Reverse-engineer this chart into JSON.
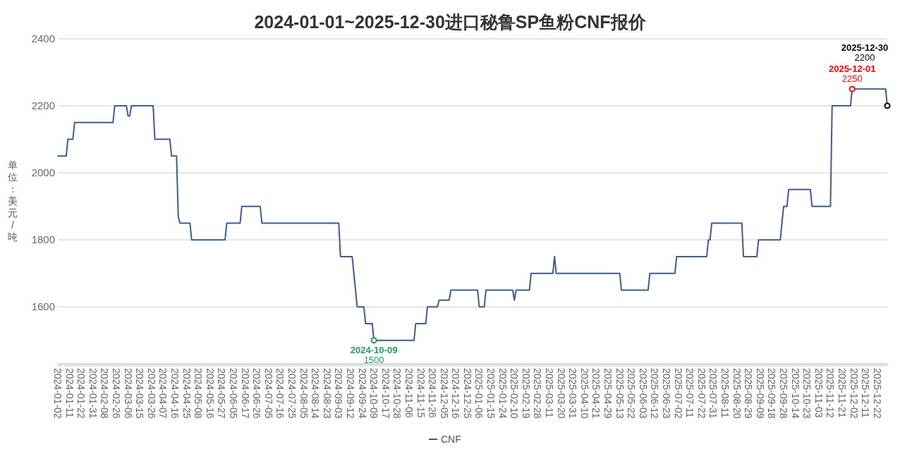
{
  "chart_data": {
    "type": "line",
    "title": "2024-01-01~2025-12-30进口秘鲁SP鱼粉CNF报价",
    "ylabel": "单位：美元/吨",
    "categories": [
      "2024-01-02",
      null,
      null,
      null,
      null,
      null,
      null,
      "2024-01-11",
      null,
      null,
      null,
      null,
      null,
      null,
      "2024-01-22",
      null,
      null,
      null,
      null,
      null,
      null,
      "2024-01-31",
      null,
      null,
      null,
      null,
      null,
      null,
      "2024-02-08",
      null,
      null,
      null,
      null,
      null,
      null,
      "2024-02-26",
      null,
      null,
      null,
      null,
      null,
      null,
      "2024-03-06",
      null,
      null,
      null,
      null,
      null,
      null,
      "2024-03-15",
      null,
      null,
      null,
      null,
      null,
      null,
      "2024-03-26",
      null,
      null,
      null,
      null,
      null,
      null,
      "2024-04-07",
      null,
      null,
      null,
      null,
      null,
      null,
      "2024-04-16",
      null,
      null,
      null,
      null,
      null,
      null,
      "2024-04-25",
      null,
      null,
      null,
      null,
      null,
      null,
      "2024-05-08",
      null,
      null,
      null,
      null,
      null,
      null,
      "2024-05-16",
      null,
      null,
      null,
      null,
      null,
      null,
      "2024-05-27",
      null,
      null,
      null,
      null,
      null,
      null,
      "2024-06-05",
      null,
      null,
      null,
      null,
      null,
      null,
      "2024-06-17",
      null,
      null,
      null,
      null,
      null,
      null,
      "2024-06-26",
      null,
      null,
      null,
      null,
      null,
      null,
      "2024-07-05",
      null,
      null,
      null,
      null,
      null,
      null,
      "2024-07-16",
      null,
      null,
      null,
      null,
      null,
      null,
      "2024-07-25",
      null,
      null,
      null,
      null,
      null,
      null,
      "2024-08-05",
      null,
      null,
      null,
      null,
      null,
      null,
      "2024-08-14",
      null,
      null,
      null,
      null,
      null,
      null,
      "2024-08-23",
      null,
      null,
      null,
      null,
      null,
      null,
      "2024-09-03",
      null,
      null,
      null,
      null,
      null,
      null,
      "2024-09-12",
      null,
      null,
      null,
      null,
      null,
      null,
      "2024-09-24",
      null,
      null,
      null,
      null,
      null,
      null,
      "2024-10-09",
      null,
      null,
      null,
      null,
      null,
      null,
      "2024-10-17",
      null,
      null,
      null,
      null,
      null,
      null,
      "2024-10-28",
      null,
      null,
      null,
      null,
      null,
      null,
      "2024-11-06",
      null,
      null,
      null,
      null,
      null,
      null,
      "2024-11-15",
      null,
      null,
      null,
      null,
      null,
      null,
      "2024-11-26",
      null,
      null,
      null,
      null,
      null,
      null,
      "2024-12-05",
      null,
      null,
      null,
      null,
      null,
      null,
      "2024-12-16",
      null,
      null,
      null,
      null,
      null,
      null,
      "2024-12-25",
      null,
      null,
      null,
      null,
      null,
      null,
      "2025-01-06",
      null,
      null,
      null,
      null,
      null,
      null,
      "2025-01-15",
      null,
      null,
      null,
      null,
      null,
      null,
      "2025-01-24",
      null,
      null,
      null,
      null,
      null,
      null,
      "2025-02-10",
      null,
      null,
      null,
      null,
      null,
      null,
      "2025-02-19",
      null,
      null,
      null,
      null,
      null,
      null,
      "2025-02-28",
      null,
      null,
      null,
      null,
      null,
      null,
      "2025-03-11",
      null,
      null,
      null,
      null,
      null,
      null,
      "2025-03-20",
      null,
      null,
      null,
      null,
      null,
      null,
      "2025-03-31",
      null,
      null,
      null,
      null,
      null,
      null,
      "2025-04-10",
      null,
      null,
      null,
      null,
      null,
      null,
      "2025-04-21",
      null,
      null,
      null,
      null,
      null,
      null,
      "2025-04-29",
      null,
      null,
      null,
      null,
      null,
      null,
      "2025-05-13",
      null,
      null,
      null,
      null,
      null,
      null,
      "2025-05-22",
      null,
      null,
      null,
      null,
      null,
      null,
      "2025-06-03",
      null,
      null,
      null,
      null,
      null,
      null,
      "2025-06-12",
      null,
      null,
      null,
      null,
      null,
      null,
      "2025-06-23",
      null,
      null,
      null,
      null,
      null,
      null,
      "2025-07-02",
      null,
      null,
      null,
      null,
      null,
      null,
      "2025-07-11",
      null,
      null,
      null,
      null,
      null,
      null,
      "2025-07-22",
      null,
      null,
      null,
      null,
      null,
      null,
      "2025-07-31",
      null,
      null,
      null,
      null,
      null,
      null,
      "2025-08-11",
      null,
      null,
      null,
      null,
      null,
      null,
      "2025-08-20",
      null,
      null,
      null,
      null,
      null,
      null,
      "2025-08-29",
      null,
      null,
      null,
      null,
      null,
      null,
      "2025-09-09",
      null,
      null,
      null,
      null,
      null,
      null,
      "2025-09-18",
      null,
      null,
      null,
      null,
      null,
      null,
      "2025-09-28",
      null,
      null,
      null,
      null,
      null,
      null,
      "2025-10-14",
      null,
      null,
      null,
      null,
      null,
      null,
      "2025-10-23",
      null,
      null,
      null,
      null,
      null,
      null,
      "2025-11-03",
      null,
      null,
      null,
      null,
      null,
      null,
      "2025-11-12",
      null,
      null,
      null,
      null,
      null,
      null,
      "2025-11-21",
      null,
      null,
      null,
      null,
      null,
      null,
      "2025-12-02",
      null,
      null,
      null,
      null,
      null,
      null,
      "2025-12-11",
      null,
      null,
      null,
      null,
      null,
      null,
      "2025-12-22",
      null,
      null,
      null,
      null,
      null,
      null
    ],
    "series": [
      {
        "name": "CNF",
        "color": "#3b5e8c",
        "values": [
          2050,
          2050,
          2050,
          2050,
          2050,
          2050,
          2100,
          2100,
          2100,
          2100,
          2150,
          2150,
          2150,
          2150,
          2150,
          2150,
          2150,
          2150,
          2150,
          2150,
          2150,
          2150,
          2150,
          2150,
          2150,
          2150,
          2150,
          2150,
          2150,
          2150,
          2150,
          2150,
          2150,
          2150,
          2200,
          2200,
          2200,
          2200,
          2200,
          2200,
          2200,
          2200,
          2170,
          2170,
          2200,
          2200,
          2200,
          2200,
          2200,
          2200,
          2200,
          2200,
          2200,
          2200,
          2200,
          2200,
          2200,
          2200,
          2100,
          2100,
          2100,
          2100,
          2100,
          2100,
          2100,
          2100,
          2100,
          2100,
          2050,
          2050,
          2050,
          2050,
          1870,
          1850,
          1850,
          1850,
          1850,
          1850,
          1850,
          1850,
          1800,
          1800,
          1800,
          1800,
          1800,
          1800,
          1800,
          1800,
          1800,
          1800,
          1800,
          1800,
          1800,
          1800,
          1800,
          1800,
          1800,
          1800,
          1800,
          1800,
          1800,
          1850,
          1850,
          1850,
          1850,
          1850,
          1850,
          1850,
          1850,
          1850,
          1900,
          1900,
          1900,
          1900,
          1900,
          1900,
          1900,
          1900,
          1900,
          1900,
          1900,
          1900,
          1850,
          1850,
          1850,
          1850,
          1850,
          1850,
          1850,
          1850,
          1850,
          1850,
          1850,
          1850,
          1850,
          1850,
          1850,
          1850,
          1850,
          1850,
          1850,
          1850,
          1850,
          1850,
          1850,
          1850,
          1850,
          1850,
          1850,
          1850,
          1850,
          1850,
          1850,
          1850,
          1850,
          1850,
          1850,
          1850,
          1850,
          1850,
          1850,
          1850,
          1850,
          1850,
          1850,
          1850,
          1850,
          1850,
          1850,
          1750,
          1750,
          1750,
          1750,
          1750,
          1750,
          1750,
          1750,
          1700,
          1650,
          1600,
          1600,
          1600,
          1600,
          1600,
          1550,
          1550,
          1550,
          1550,
          1550,
          1500,
          1500,
          1500,
          1500,
          1500,
          1500,
          1500,
          1500,
          1500,
          1500,
          1500,
          1500,
          1500,
          1500,
          1500,
          1500,
          1500,
          1500,
          1500,
          1500,
          1500,
          1500,
          1500,
          1500,
          1500,
          1550,
          1550,
          1550,
          1550,
          1550,
          1550,
          1550,
          1600,
          1600,
          1600,
          1600,
          1600,
          1600,
          1600,
          1620,
          1620,
          1620,
          1620,
          1620,
          1620,
          1620,
          1650,
          1650,
          1650,
          1650,
          1650,
          1650,
          1650,
          1650,
          1650,
          1650,
          1650,
          1650,
          1650,
          1650,
          1650,
          1650,
          1650,
          1600,
          1600,
          1600,
          1600,
          1650,
          1650,
          1650,
          1650,
          1650,
          1650,
          1650,
          1650,
          1650,
          1650,
          1650,
          1650,
          1650,
          1650,
          1650,
          1650,
          1650,
          1620,
          1650,
          1650,
          1650,
          1650,
          1650,
          1650,
          1650,
          1650,
          1650,
          1700,
          1700,
          1700,
          1700,
          1700,
          1700,
          1700,
          1700,
          1700,
          1700,
          1700,
          1700,
          1700,
          1700,
          1750,
          1700,
          1700,
          1700,
          1700,
          1700,
          1700,
          1700,
          1700,
          1700,
          1700,
          1700,
          1700,
          1700,
          1700,
          1700,
          1700,
          1700,
          1700,
          1700,
          1700,
          1700,
          1700,
          1700,
          1700,
          1700,
          1700,
          1700,
          1700,
          1700,
          1700,
          1700,
          1700,
          1700,
          1700,
          1700,
          1700,
          1700,
          1700,
          1700,
          1650,
          1650,
          1650,
          1650,
          1650,
          1650,
          1650,
          1650,
          1650,
          1650,
          1650,
          1650,
          1650,
          1650,
          1650,
          1650,
          1650,
          1700,
          1700,
          1700,
          1700,
          1700,
          1700,
          1700,
          1700,
          1700,
          1700,
          1700,
          1700,
          1700,
          1700,
          1700,
          1700,
          1750,
          1750,
          1750,
          1750,
          1750,
          1750,
          1750,
          1750,
          1750,
          1750,
          1750,
          1750,
          1750,
          1750,
          1750,
          1750,
          1750,
          1750,
          1750,
          1800,
          1800,
          1850,
          1850,
          1850,
          1850,
          1850,
          1850,
          1850,
          1850,
          1850,
          1850,
          1850,
          1850,
          1850,
          1850,
          1850,
          1850,
          1850,
          1850,
          1850,
          1750,
          1750,
          1750,
          1750,
          1750,
          1750,
          1750,
          1750,
          1750,
          1800,
          1800,
          1800,
          1800,
          1800,
          1800,
          1800,
          1800,
          1800,
          1800,
          1800,
          1800,
          1800,
          1800,
          1850,
          1900,
          1900,
          1900,
          1950,
          1950,
          1950,
          1950,
          1950,
          1950,
          1950,
          1950,
          1950,
          1950,
          1950,
          1950,
          1950,
          1950,
          1900,
          1900,
          1900,
          1900,
          1900,
          1900,
          1900,
          1900,
          1900,
          1900,
          1900,
          1900,
          2200,
          2200,
          2200,
          2200,
          2200,
          2200,
          2200,
          2200,
          2200,
          2200,
          2200,
          2200,
          2250,
          2250,
          2250,
          2250,
          2250,
          2250,
          2250,
          2250,
          2250,
          2250,
          2250,
          2250,
          2250,
          2250,
          2250,
          2250,
          2250,
          2250,
          2250,
          2250,
          2250,
          2200
        ]
      }
    ],
    "ylim": [
      1430,
      2400
    ],
    "yticks": [
      1600,
      1800,
      2000,
      2200,
      2400
    ],
    "grid": "y",
    "legend": "bottom",
    "annotations": [
      {
        "text": "2024-10-09",
        "x": "2024-10-09",
        "y": 1500
      },
      {
        "text": "1500",
        "x": "2024-10-09",
        "y": 1500
      },
      {
        "text": "2025-12-01",
        "y": 2250
      },
      {
        "text": "2250",
        "y": 2250
      },
      "2025-12-30",
      "2200"
    ]
  }
}
